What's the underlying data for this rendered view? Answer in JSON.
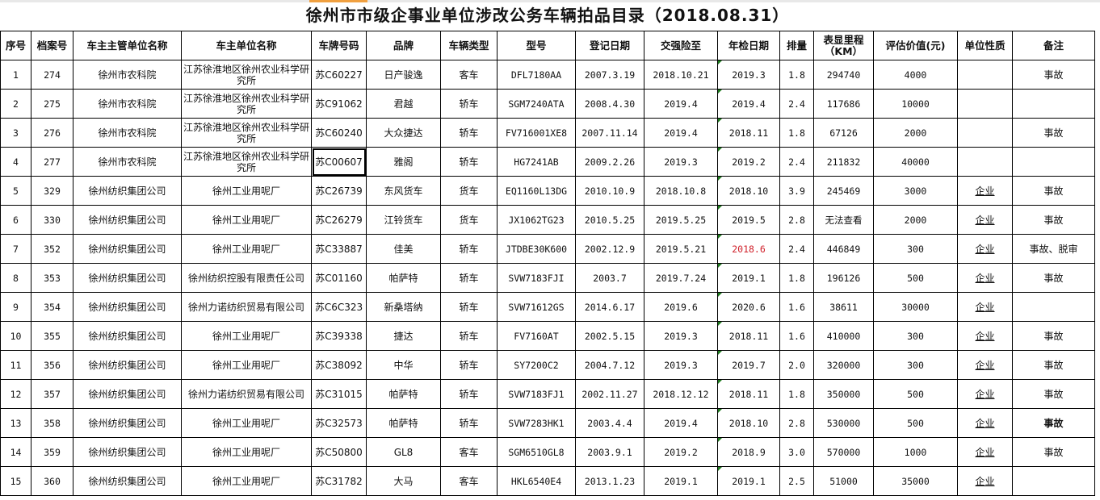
{
  "title": "徐州市市级企事业单位涉改公务车辆拍品目录（2018.08.31）",
  "headers": [
    "序号",
    "档案号",
    "车主主管单位名称",
    "车主单位名称",
    "车牌号码",
    "品牌",
    "车辆类型",
    "型号",
    "登记日期",
    "交强险至",
    "年检日期",
    "排量",
    "表显里程（KM）",
    "评估价值(元)",
    "单位性质",
    "备注"
  ],
  "rows": [
    [
      "1",
      "274",
      "徐州市农科院",
      "江苏徐淮地区徐州农业科学研究所",
      "苏C60227",
      "日产骏逸",
      "客车",
      "DFL7180AA",
      "2007.3.19",
      "2018.10.21",
      "2019.3",
      "1.8",
      "294740",
      "4000",
      "",
      "事故"
    ],
    [
      "2",
      "275",
      "徐州市农科院",
      "江苏徐淮地区徐州农业科学研究所",
      "苏C91062",
      "君越",
      "轿车",
      "SGM7240ATA",
      "2008.4.30",
      "2019.4",
      "2019.4",
      "2.4",
      "117686",
      "10000",
      "",
      ""
    ],
    [
      "3",
      "276",
      "徐州市农科院",
      "江苏徐淮地区徐州农业科学研究所",
      "苏C60240",
      "大众捷达",
      "轿车",
      "FV716001XE8",
      "2007.11.14",
      "2019.4",
      "2018.11",
      "1.8",
      "67126",
      "2000",
      "",
      "事故"
    ],
    [
      "4",
      "277",
      "徐州市农科院",
      "江苏徐淮地区徐州农业科学研究所",
      "苏C00607",
      "雅阁",
      "轿车",
      "HG7241AB",
      "2009.2.26",
      "2019.3",
      "2019.2",
      "2.4",
      "211832",
      "40000",
      "",
      ""
    ],
    [
      "5",
      "329",
      "徐州纺织集团公司",
      "徐州工业用呢厂",
      "苏C26739",
      "东风货车",
      "货车",
      "EQ1160L13DG",
      "2010.10.9",
      "2018.10.8",
      "2018.10",
      "3.9",
      "245469",
      "3000",
      "企业",
      "事故"
    ],
    [
      "6",
      "330",
      "徐州纺织集团公司",
      "徐州工业用呢厂",
      "苏C26279",
      "江铃货车",
      "货车",
      "JX1062TG23",
      "2010.5.25",
      "2019.5.25",
      "2019.5",
      "2.8",
      "无法查看",
      "2000",
      "企业",
      "事故"
    ],
    [
      "7",
      "352",
      "徐州纺织集团公司",
      "徐州工业用呢厂",
      "苏C33887",
      "佳美",
      "轿车",
      "JTDBE30K600",
      "2002.12.9",
      "2019.5.21",
      "2018.6",
      "2.4",
      "446849",
      "300",
      "企业",
      "事故、脱审"
    ],
    [
      "8",
      "353",
      "徐州纺织集团公司",
      "徐州纺织控股有限责任公司",
      "苏C01160",
      "帕萨特",
      "轿车",
      "SVW7183FJI",
      "2003.7",
      "2019.7.24",
      "2019.1",
      "1.8",
      "196126",
      "500",
      "企业",
      "事故"
    ],
    [
      "9",
      "354",
      "徐州纺织集团公司",
      "徐州力诺纺织贸易有限公司",
      "苏C6C323",
      "新桑塔纳",
      "轿车",
      "SVW71612GS",
      "2014.6.17",
      "2019.6",
      "2020.6",
      "1.6",
      "38611",
      "30000",
      "企业",
      ""
    ],
    [
      "10",
      "355",
      "徐州纺织集团公司",
      "徐州工业用呢厂",
      "苏C39338",
      "捷达",
      "轿车",
      "FV7160AT",
      "2002.5.15",
      "2019.3",
      "2018.11",
      "1.6",
      "410000",
      "300",
      "企业",
      "事故"
    ],
    [
      "11",
      "356",
      "徐州纺织集团公司",
      "徐州工业用呢厂",
      "苏C38092",
      "中华",
      "轿车",
      "SY7200C2",
      "2004.7.12",
      "2019.3",
      "2019.7",
      "2.0",
      "320000",
      "300",
      "企业",
      "事故"
    ],
    [
      "12",
      "357",
      "徐州纺织集团公司",
      "徐州力诺纺织贸易有限公司",
      "苏C31015",
      "帕萨特",
      "轿车",
      "SVW7183FJ1",
      "2002.11.27",
      "2018.12.12",
      "2018.11",
      "1.8",
      "350000",
      "500",
      "企业",
      "事故"
    ],
    [
      "13",
      "358",
      "徐州纺织集团公司",
      "徐州工业用呢厂",
      "苏C32573",
      "帕萨特",
      "轿车",
      "SVW7283HK1",
      "2003.4.4",
      "2019.4",
      "2018.10",
      "2.8",
      "530000",
      "500",
      "企业",
      "事故"
    ],
    [
      "14",
      "359",
      "徐州纺织集团公司",
      "徐州工业用呢厂",
      "苏C50800",
      "GL8",
      "客车",
      "SGM6510GL8",
      "2003.9.1",
      "2019.2",
      "2018.9",
      "3.0",
      "570000",
      "1000",
      "企业",
      "事故"
    ],
    [
      "15",
      "360",
      "徐州纺织集团公司",
      "徐州工业用呢厂",
      "苏C31782",
      "大马",
      "客车",
      "HKL6540E4",
      "2013.1.23",
      "2019.1",
      "2019.1",
      "2.5",
      "51000",
      "35000",
      "企业",
      ""
    ]
  ],
  "colors": {
    "expired_inspection": "#d0202a",
    "comment_triangle": "#1c7a1c"
  }
}
